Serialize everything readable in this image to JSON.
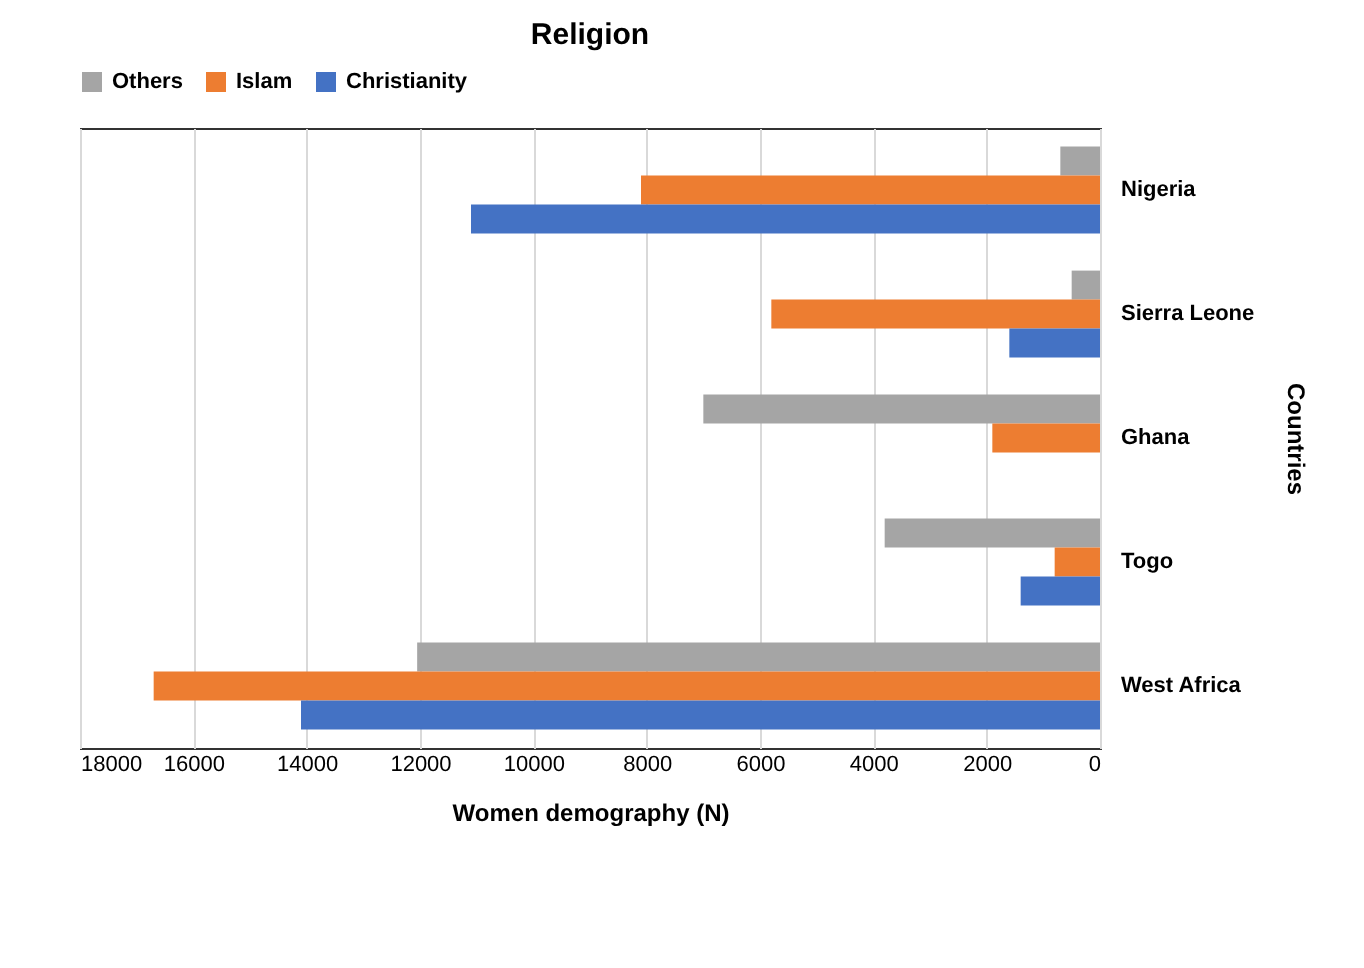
{
  "chart_data": {
    "type": "bar",
    "orientation": "horizontal",
    "title": "Religion",
    "xlabel": "Women demography (N)",
    "ylabel": "Countries",
    "categories": [
      "Nigeria",
      "Sierra Leone",
      "Ghana",
      "Togo",
      "West Africa"
    ],
    "series": [
      {
        "name": "Others",
        "color": "#a5a5a5",
        "values": [
          700,
          500,
          7000,
          3800,
          12050
        ]
      },
      {
        "name": "Islam",
        "color": "#ed7d31",
        "values": [
          8100,
          5800,
          1900,
          800,
          16700
        ]
      },
      {
        "name": "Christianity",
        "color": "#4472c4",
        "values": [
          11100,
          1600,
          null,
          1400,
          14100
        ]
      }
    ],
    "xlim": [
      18000,
      0
    ],
    "xticks": [
      18000,
      16000,
      14000,
      12000,
      10000,
      8000,
      6000,
      4000,
      2000,
      0
    ],
    "grid": "x",
    "legend": "top"
  }
}
